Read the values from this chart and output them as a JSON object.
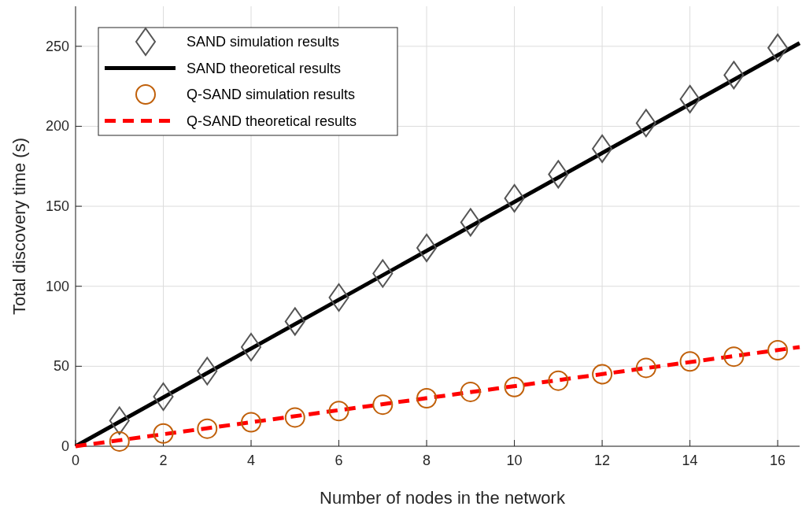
{
  "chart_data": {
    "type": "scatter",
    "xlabel": "Number of nodes in the network",
    "ylabel": "Total discovery time (s)",
    "xlim": [
      0,
      16.5
    ],
    "ylim": [
      0,
      275
    ],
    "xticks": [
      0,
      2,
      4,
      6,
      8,
      10,
      12,
      14,
      16
    ],
    "yticks": [
      0,
      50,
      100,
      150,
      200,
      250
    ],
    "grid": true,
    "legend": "top left",
    "series": [
      {
        "name": "SAND simulation results",
        "marker": "diamond",
        "color": "#555555",
        "x": [
          1,
          2,
          3,
          4,
          5,
          6,
          7,
          8,
          9,
          10,
          11,
          12,
          13,
          14,
          15,
          16
        ],
        "values": [
          16,
          31,
          47,
          62,
          78,
          93,
          108,
          124,
          140,
          155,
          170,
          186,
          202,
          217,
          232,
          249
        ]
      },
      {
        "name": "SAND theoretical results",
        "type": "line",
        "marker": "none",
        "line_style": "solid",
        "color": "#000000",
        "x": [
          0,
          16.5
        ],
        "values": [
          0,
          252
        ]
      },
      {
        "name": "Q-SAND simulation results",
        "marker": "circle",
        "color": "#c0600a",
        "x": [
          1,
          2,
          3,
          4,
          5,
          6,
          7,
          8,
          9,
          10,
          11,
          12,
          13,
          14,
          15,
          16
        ],
        "values": [
          3,
          8,
          11,
          15,
          18,
          22,
          26,
          30,
          34,
          37,
          41,
          45,
          49,
          53,
          56,
          60
        ]
      },
      {
        "name": "Q-SAND theoretical results",
        "type": "line",
        "marker": "none",
        "line_style": "dashed",
        "color": "#ff0000",
        "x": [
          0,
          16.5
        ],
        "values": [
          0,
          62
        ]
      }
    ]
  }
}
